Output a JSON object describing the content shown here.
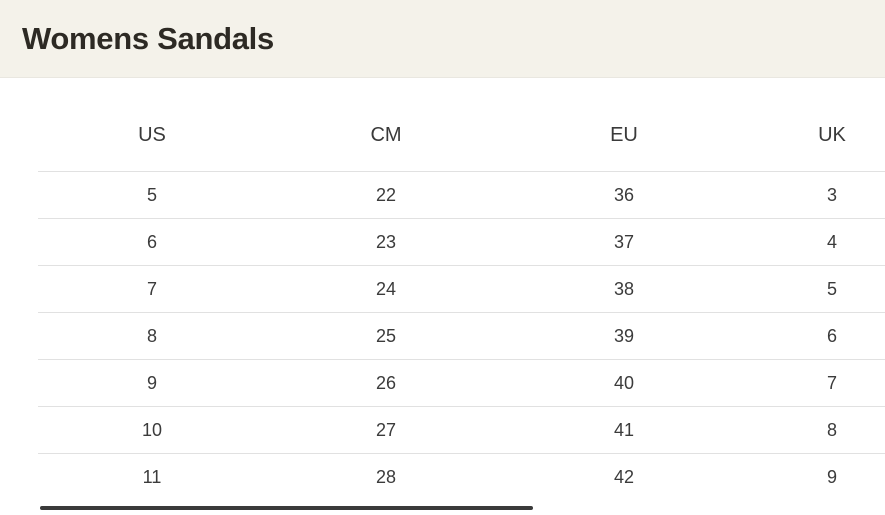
{
  "header": {
    "title": "Womens Sandals"
  },
  "table": {
    "columns": [
      "US",
      "CM",
      "EU",
      "UK"
    ],
    "rows": [
      [
        "5",
        "22",
        "36",
        "3"
      ],
      [
        "6",
        "23",
        "37",
        "4"
      ],
      [
        "7",
        "24",
        "38",
        "5"
      ],
      [
        "8",
        "25",
        "39",
        "6"
      ],
      [
        "9",
        "26",
        "40",
        "7"
      ],
      [
        "10",
        "27",
        "41",
        "8"
      ],
      [
        "11",
        "28",
        "42",
        "9"
      ]
    ]
  },
  "colors": {
    "header_band_bg": "#f4f2ea",
    "title_text": "#2d2a24",
    "cell_text": "#3b3b3b",
    "row_divider": "#e1e1e1",
    "scrollbar_thumb": "#3a3a3a"
  }
}
